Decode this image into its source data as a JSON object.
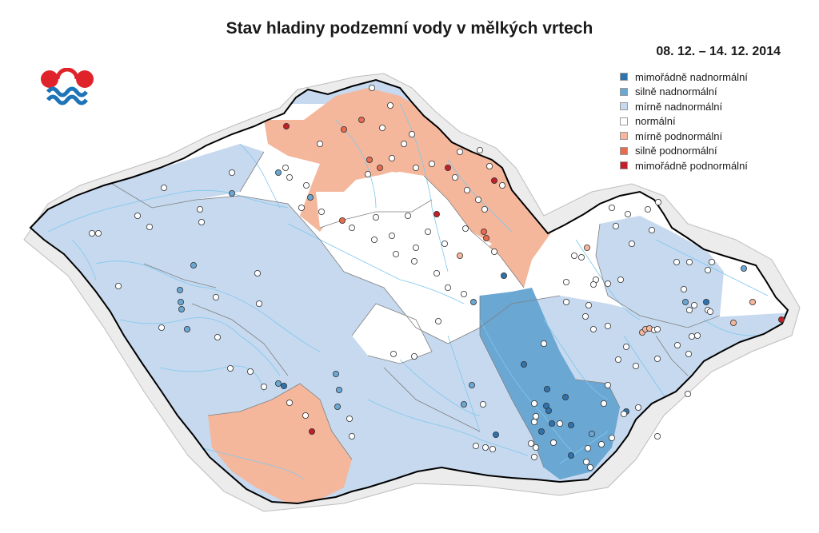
{
  "title": "Stav hladiny podzemní vody v mělkých vrtech",
  "period": "08. 12. – 14. 12. 2014",
  "legend": [
    {
      "label": "mimořádně nadnormální",
      "color": "#2f73ae"
    },
    {
      "label": "silně nadnormální",
      "color": "#6aa7d3"
    },
    {
      "label": "mírně nadnormální",
      "color": "#c6d9ef"
    },
    {
      "label": "normální",
      "color": "#ffffff"
    },
    {
      "label": "mírně podnormální",
      "color": "#f4b79c"
    },
    {
      "label": "silně podnormální",
      "color": "#e86a4f"
    },
    {
      "label": "mimořádně podnormální",
      "color": "#c1202a"
    }
  ],
  "colors": {
    "mimoradne_nad": "#2f73ae",
    "silne_nad": "#6aa7d3",
    "mirne_nad": "#c6d9ef",
    "normalni": "#ffffff",
    "mirne_pod": "#f4b79c",
    "silne_pod": "#e86a4f",
    "mimoradne_pod": "#c1202a",
    "rivers": "#7ec8ee",
    "basin_lines": "#808080",
    "border": "#000000",
    "outside": "#e6e6e6",
    "logo_red": "#e0232b",
    "logo_blue": "#1e74b8"
  },
  "logo": {
    "icon": "chmi-logo-icon"
  }
}
